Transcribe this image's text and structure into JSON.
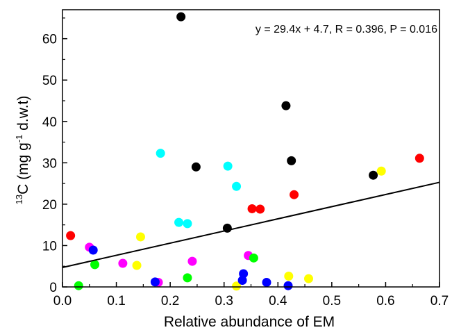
{
  "chart_data": {
    "type": "scatter",
    "title": "",
    "xlabel": "Relative abundance of EM",
    "ylabel": {
      "superscript": "13",
      "main": "C (mg g",
      "unit_superscript": "-1",
      "tail": " d.w.t)"
    },
    "annotation": "y = 29.4x + 4.7, R = 0.396, P = 0.016",
    "xlim": [
      0,
      0.7
    ],
    "ylim": [
      0,
      67
    ],
    "x_ticks": [
      "0.0",
      "0.1",
      "0.2",
      "0.3",
      "0.4",
      "0.5",
      "0.6",
      "0.7"
    ],
    "y_ticks": [
      "0",
      "10",
      "20",
      "30",
      "40",
      "50",
      "60"
    ],
    "grid": false,
    "legend": "none",
    "regression": {
      "slope": 29.4,
      "intercept": 4.7
    },
    "colors": {
      "black": "#000000",
      "red": "#ff0000",
      "cyan": "#00ffff",
      "yellow": "#ffff00",
      "magenta": "#ff00ff",
      "green": "#00ff00",
      "blue": "#0000ff",
      "line": "#000000"
    },
    "series": [
      {
        "color": "black",
        "points": [
          [
            0.22,
            65.3
          ],
          [
            0.415,
            43.8
          ],
          [
            0.248,
            29.0
          ],
          [
            0.425,
            30.5
          ],
          [
            0.577,
            27.0
          ],
          [
            0.306,
            14.2
          ]
        ]
      },
      {
        "color": "red",
        "points": [
          [
            0.015,
            12.4
          ],
          [
            0.352,
            18.9
          ],
          [
            0.367,
            18.8
          ],
          [
            0.43,
            22.3
          ],
          [
            0.663,
            31.1
          ]
        ]
      },
      {
        "color": "cyan",
        "points": [
          [
            0.182,
            32.3
          ],
          [
            0.307,
            29.2
          ],
          [
            0.323,
            24.3
          ],
          [
            0.216,
            15.6
          ],
          [
            0.232,
            15.3
          ]
        ]
      },
      {
        "color": "yellow",
        "points": [
          [
            0.145,
            12.1
          ],
          [
            0.138,
            5.2
          ],
          [
            0.323,
            0.2
          ],
          [
            0.42,
            2.6
          ],
          [
            0.457,
            2.0
          ],
          [
            0.592,
            28.0
          ]
        ]
      },
      {
        "color": "magenta",
        "points": [
          [
            0.05,
            9.6
          ],
          [
            0.112,
            5.7
          ],
          [
            0.178,
            1.1
          ],
          [
            0.241,
            6.2
          ],
          [
            0.345,
            7.6
          ]
        ]
      },
      {
        "color": "green",
        "points": [
          [
            0.06,
            5.4
          ],
          [
            0.03,
            0.3
          ],
          [
            0.232,
            2.2
          ],
          [
            0.355,
            7.0
          ]
        ]
      },
      {
        "color": "blue",
        "points": [
          [
            0.057,
            8.9
          ],
          [
            0.172,
            1.2
          ],
          [
            0.336,
            3.2
          ],
          [
            0.334,
            1.6
          ],
          [
            0.379,
            1.1
          ],
          [
            0.419,
            0.3
          ]
        ]
      }
    ]
  }
}
